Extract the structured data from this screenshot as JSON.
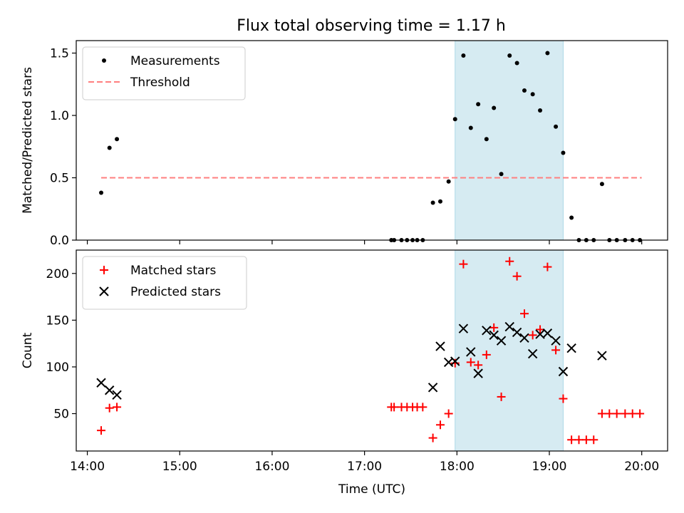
{
  "title": "Flux total observing time = 1.17 h",
  "chart_data": [
    {
      "type": "scatter",
      "panel": "top",
      "ylabel": "Matched/Predicted stars",
      "xlabel": "",
      "ylim": [
        0,
        1.6
      ],
      "yticks": [
        0.0,
        0.5,
        1.0,
        1.5
      ],
      "ytick_labels": [
        "0.0",
        "0.5",
        "1.0",
        "1.5"
      ],
      "shaded_region": {
        "x": [
          17.98,
          19.15
        ],
        "color": "#add8e6"
      },
      "legend_position": "top-left",
      "series": [
        {
          "name": "Measurements",
          "kind": "points",
          "color": "#000000",
          "x": [
            14.15,
            14.24,
            14.32,
            17.29,
            17.32,
            17.4,
            17.46,
            17.52,
            17.57,
            17.63,
            17.74,
            17.82,
            17.91,
            17.98,
            18.07,
            18.15,
            18.23,
            18.32,
            18.4,
            18.48,
            18.57,
            18.65,
            18.73,
            18.82,
            18.9,
            18.98,
            19.07,
            19.15,
            19.24,
            19.32,
            19.4,
            19.48,
            19.57,
            19.65,
            19.73,
            19.82,
            19.9,
            19.98
          ],
          "y": [
            0.38,
            0.74,
            0.81,
            0.0,
            0.0,
            0.0,
            0.0,
            0.0,
            0.0,
            0.0,
            0.3,
            0.31,
            0.47,
            0.97,
            1.48,
            0.9,
            1.09,
            0.81,
            1.06,
            0.53,
            1.48,
            1.42,
            1.2,
            1.17,
            1.04,
            1.5,
            0.91,
            0.7,
            0.18,
            0.0,
            0.0,
            0.0,
            0.45,
            0.0,
            0.0,
            0.0,
            0.0,
            0.0
          ]
        },
        {
          "name": "Threshold",
          "kind": "dashed-line",
          "color": "#ff7f7f",
          "x": [
            14.15,
            20.0
          ],
          "y": [
            0.5,
            0.5
          ]
        }
      ]
    },
    {
      "type": "scatter",
      "panel": "bottom",
      "ylabel": "Count",
      "xlabel": "Time (UTC)",
      "ylim": [
        10,
        225
      ],
      "yticks": [
        50,
        100,
        150,
        200
      ],
      "ytick_labels": [
        "50",
        "100",
        "150",
        "200"
      ],
      "xlim": [
        13.88,
        20.28
      ],
      "xticks": [
        14,
        15,
        16,
        17,
        18,
        19,
        20
      ],
      "xtick_labels": [
        "14:00",
        "15:00",
        "16:00",
        "17:00",
        "18:00",
        "19:00",
        "20:00"
      ],
      "shaded_region": {
        "x": [
          17.98,
          19.15
        ],
        "color": "#add8e6"
      },
      "legend_position": "top-left",
      "series": [
        {
          "name": "Matched stars",
          "kind": "plus",
          "color": "#ff0000",
          "x": [
            14.15,
            14.24,
            14.32,
            17.29,
            17.32,
            17.4,
            17.46,
            17.52,
            17.57,
            17.63,
            17.74,
            17.82,
            17.91,
            17.98,
            18.07,
            18.15,
            18.23,
            18.32,
            18.4,
            18.48,
            18.57,
            18.65,
            18.73,
            18.82,
            18.9,
            18.98,
            19.07,
            19.15,
            19.24,
            19.32,
            19.4,
            19.48,
            19.57,
            19.65,
            19.73,
            19.82,
            19.9,
            19.98
          ],
          "y": [
            32,
            56,
            57,
            57,
            57,
            57,
            57,
            57,
            57,
            57,
            24,
            38,
            50,
            104,
            210,
            105,
            102,
            113,
            142,
            68,
            213,
            197,
            157,
            134,
            140,
            207,
            118,
            66,
            22,
            22,
            22,
            22,
            50,
            50,
            50,
            50,
            50,
            50
          ]
        },
        {
          "name": "Predicted stars",
          "kind": "x",
          "color": "#000000",
          "x": [
            14.15,
            14.24,
            14.32,
            17.74,
            17.82,
            17.91,
            17.98,
            18.07,
            18.15,
            18.23,
            18.32,
            18.4,
            18.48,
            18.57,
            18.65,
            18.73,
            18.82,
            18.9,
            18.98,
            19.07,
            19.15,
            19.24,
            19.57
          ],
          "y": [
            83,
            75,
            70,
            78,
            122,
            105,
            106,
            141,
            116,
            93,
            139,
            134,
            128,
            143,
            137,
            131,
            114,
            135,
            136,
            128,
            95,
            120,
            112
          ]
        }
      ]
    }
  ]
}
